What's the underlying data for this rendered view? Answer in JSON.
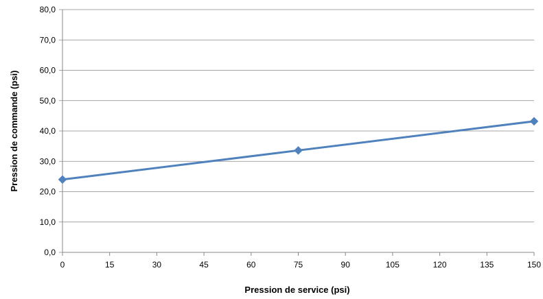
{
  "chart_data": {
    "type": "line",
    "title": "",
    "xlabel": "Pression de service (psi)",
    "ylabel": "Pression de commande (psi)",
    "xlim": [
      0,
      150
    ],
    "ylim": [
      0,
      80
    ],
    "x_ticks": [
      "0",
      "15",
      "30",
      "45",
      "60",
      "75",
      "90",
      "105",
      "120",
      "135",
      "150"
    ],
    "y_ticks": [
      "0,0",
      "10,0",
      "20,0",
      "30,0",
      "40,0",
      "50,0",
      "60,0",
      "70,0",
      "80,0"
    ],
    "grid": "horizontal",
    "legend": "none",
    "series": [
      {
        "x": [
          0,
          75,
          150
        ],
        "y": [
          24.0,
          33.6,
          43.2
        ],
        "color": "#4f81bd",
        "marker": "diamond"
      }
    ]
  }
}
